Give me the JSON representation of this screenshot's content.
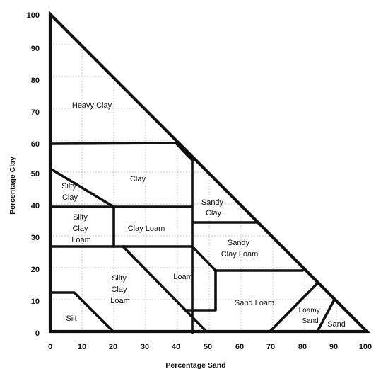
{
  "axes": {
    "x_label": "Percentage Sand",
    "y_label": "Percentage Clay",
    "x_ticks": [
      "0",
      "10",
      "20",
      "30",
      "40",
      "50",
      "60",
      "70",
      "80",
      "90",
      "100"
    ],
    "y_ticks": [
      "0",
      "10",
      "20",
      "30",
      "40",
      "50",
      "60",
      "70",
      "80",
      "90",
      "100"
    ]
  },
  "regions": {
    "heavy_clay": [
      "Heavy Clay"
    ],
    "clay": [
      "Clay"
    ],
    "silty_clay": [
      "Silty",
      "Clay"
    ],
    "sandy_clay": [
      "Sandy",
      "Clay"
    ],
    "silty_clay_loam_upper": [
      "Silty",
      "Clay",
      "Loam"
    ],
    "clay_loam": [
      "Clay Loam"
    ],
    "sandy_clay_loam": [
      "Sandy",
      "Clay Loam"
    ],
    "silty_clay_loam_lower": [
      "Silty",
      "Clay",
      "Loam"
    ],
    "loam": [
      "Loam"
    ],
    "sand_loam": [
      "Sand Loam"
    ],
    "silt": [
      "Silt"
    ],
    "loamy_sand": [
      "Loamy",
      "Sand"
    ],
    "sand": [
      "Sand"
    ]
  }
}
